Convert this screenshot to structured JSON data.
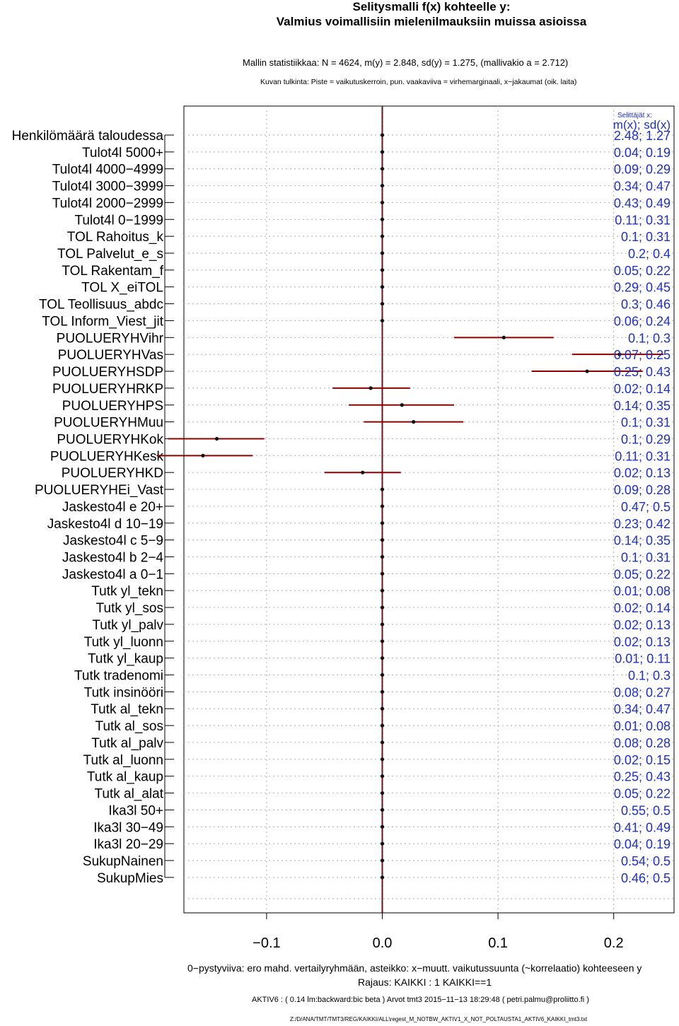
{
  "title_line1": "Selitysmalli f(x) kohteelle y:",
  "title_line2": "Valmius voimallisiin mielenilmauksiin muissa asioissa",
  "stats_line": "Mallin statistiikkaa: N = 4624, m(y) = 2.848, sd(y) = 1.275, (mallivakio a = 2.712)",
  "reading_line": "Kuvan tulkinta: Piste = vaikutuskerroin, pun. vaakaviiva = virhemarginaali, x−jakaumat (oik. laita)",
  "footer_line1": "0−pystyviiva: ero mahd. vertailyryhmään, asteikko: x−muutt. vaikutussuunta (~korrelaatio) kohteeseen y",
  "footer_line2": "Rajaus: KAIKKI : 1  KAIKKI==1",
  "footer_line3": "AKTIV6 : ( 0.14 lm:backward:bic beta )   Arvot tmt3 2015−11−13 18:29:48 ( petri.palmu@proliitto.fi )",
  "footer_line4": "Z:/D/ANA/TMT/TMT3/REG/KAIKKI/ALL\\regest_M_NOTBW_AKTIV1_X_NOT_POLTAUSTA1_AKTIV6_KAIKKI_tmt3.txt",
  "colors": {
    "dot": "#111111",
    "interval": "#8b0000",
    "zero_line": "#8b0000",
    "stats_text": "#1e2fd0",
    "grid": "#bbbbbb"
  },
  "chart_data": {
    "type": "scatter",
    "subtype": "coefficient-plot",
    "xlim": [
      -0.17,
      0.25
    ],
    "x_ticks": [
      -0.1,
      0.0,
      0.1,
      0.2
    ],
    "x_tick_labels": [
      "−0.1",
      "0.0",
      "0.1",
      "0.2"
    ],
    "reference_line_x": 0.0,
    "grid": true,
    "stats_header_small": "Selittäjät x:",
    "stats_header": "m(x); sd(x)",
    "rows": [
      {
        "label": "Henkilömäärä taloudessa",
        "coef": 0.0,
        "ci": null,
        "stats": "2.48; 1.27"
      },
      {
        "label": "Tulot4l 5000+",
        "coef": 0.0,
        "ci": null,
        "stats": "0.04; 0.19"
      },
      {
        "label": "Tulot4l 4000−4999",
        "coef": 0.0,
        "ci": null,
        "stats": "0.09; 0.29"
      },
      {
        "label": "Tulot4l 3000−3999",
        "coef": 0.0,
        "ci": null,
        "stats": "0.34; 0.47"
      },
      {
        "label": "Tulot4l 2000−2999",
        "coef": 0.0,
        "ci": null,
        "stats": "0.43; 0.49"
      },
      {
        "label": "Tulot4l 0−1999",
        "coef": 0.0,
        "ci": null,
        "stats": "0.11; 0.31"
      },
      {
        "label": "TOL Rahoitus_k",
        "coef": 0.0,
        "ci": null,
        "stats": "0.1; 0.31"
      },
      {
        "label": "TOL Palvelut_e_s",
        "coef": 0.0,
        "ci": null,
        "stats": "0.2; 0.4"
      },
      {
        "label": "TOL Rakentam_f",
        "coef": 0.0,
        "ci": null,
        "stats": "0.05; 0.22"
      },
      {
        "label": "TOL X_eiTOL",
        "coef": 0.0,
        "ci": null,
        "stats": "0.29; 0.45"
      },
      {
        "label": "TOL Teollisuus_abdc",
        "coef": 0.0,
        "ci": null,
        "stats": "0.3; 0.46"
      },
      {
        "label": "TOL Inform_Viest_jit",
        "coef": 0.0,
        "ci": null,
        "stats": "0.06; 0.24"
      },
      {
        "label": "PUOLUERYHVihr",
        "coef": 0.105,
        "ci": [
          0.062,
          0.148
        ],
        "stats": "0.1; 0.3"
      },
      {
        "label": "PUOLUERYHVas",
        "coef": 0.205,
        "ci": [
          0.164,
          0.243
        ],
        "stats": "0.07; 0.25"
      },
      {
        "label": "PUOLUERYHSDP",
        "coef": 0.177,
        "ci": [
          0.129,
          0.225
        ],
        "stats": "0.25; 0.43"
      },
      {
        "label": "PUOLUERYHRKP",
        "coef": -0.01,
        "ci": [
          -0.043,
          0.024
        ],
        "stats": "0.02; 0.14"
      },
      {
        "label": "PUOLUERYHPS",
        "coef": 0.017,
        "ci": [
          -0.029,
          0.062
        ],
        "stats": "0.14; 0.35"
      },
      {
        "label": "PUOLUERYHMuu",
        "coef": 0.027,
        "ci": [
          -0.016,
          0.07
        ],
        "stats": "0.1; 0.31"
      },
      {
        "label": "PUOLUERYHKok",
        "coef": -0.143,
        "ci": [
          -0.185,
          -0.102
        ],
        "stats": "0.1; 0.29"
      },
      {
        "label": "PUOLUERYHKesk",
        "coef": -0.155,
        "ci": [
          -0.195,
          -0.112
        ],
        "stats": "0.11; 0.31"
      },
      {
        "label": "PUOLUERYHKD",
        "coef": -0.017,
        "ci": [
          -0.05,
          0.016
        ],
        "stats": "0.02; 0.13"
      },
      {
        "label": "PUOLUERYHEi_Vast",
        "coef": 0.0,
        "ci": null,
        "stats": "0.09; 0.28"
      },
      {
        "label": "Jaskesto4l e 20+",
        "coef": 0.0,
        "ci": null,
        "stats": "0.47; 0.5"
      },
      {
        "label": "Jaskesto4l d 10−19",
        "coef": 0.0,
        "ci": null,
        "stats": "0.23; 0.42"
      },
      {
        "label": "Jaskesto4l c 5−9",
        "coef": 0.0,
        "ci": null,
        "stats": "0.14; 0.35"
      },
      {
        "label": "Jaskesto4l b 2−4",
        "coef": 0.0,
        "ci": null,
        "stats": "0.1; 0.31"
      },
      {
        "label": "Jaskesto4l a 0−1",
        "coef": 0.0,
        "ci": null,
        "stats": "0.05; 0.22"
      },
      {
        "label": "Tutk yl_tekn",
        "coef": 0.0,
        "ci": null,
        "stats": "0.01; 0.08"
      },
      {
        "label": "Tutk yl_sos",
        "coef": 0.0,
        "ci": null,
        "stats": "0.02; 0.14"
      },
      {
        "label": "Tutk yl_palv",
        "coef": 0.0,
        "ci": null,
        "stats": "0.02; 0.13"
      },
      {
        "label": "Tutk yl_luonn",
        "coef": 0.0,
        "ci": null,
        "stats": "0.02; 0.13"
      },
      {
        "label": "Tutk yl_kaup",
        "coef": 0.0,
        "ci": null,
        "stats": "0.01; 0.11"
      },
      {
        "label": "Tutk tradenomi",
        "coef": 0.0,
        "ci": null,
        "stats": "0.1; 0.3"
      },
      {
        "label": "Tutk insinööri",
        "coef": 0.0,
        "ci": null,
        "stats": "0.08; 0.27"
      },
      {
        "label": "Tutk al_tekn",
        "coef": 0.0,
        "ci": null,
        "stats": "0.34; 0.47"
      },
      {
        "label": "Tutk al_sos",
        "coef": 0.0,
        "ci": null,
        "stats": "0.01; 0.08"
      },
      {
        "label": "Tutk al_palv",
        "coef": 0.0,
        "ci": null,
        "stats": "0.08; 0.28"
      },
      {
        "label": "Tutk al_luonn",
        "coef": 0.0,
        "ci": null,
        "stats": "0.02; 0.15"
      },
      {
        "label": "Tutk al_kaup",
        "coef": 0.0,
        "ci": null,
        "stats": "0.25; 0.43"
      },
      {
        "label": "Tutk al_alat",
        "coef": 0.0,
        "ci": null,
        "stats": "0.05; 0.22"
      },
      {
        "label": "Ika3l 50+",
        "coef": 0.0,
        "ci": null,
        "stats": "0.55; 0.5"
      },
      {
        "label": "Ika3l 30−49",
        "coef": 0.0,
        "ci": null,
        "stats": "0.41; 0.49"
      },
      {
        "label": "Ika3l 20−29",
        "coef": 0.0,
        "ci": null,
        "stats": "0.04; 0.19"
      },
      {
        "label": "SukupNainen",
        "coef": 0.0,
        "ci": null,
        "stats": "0.54; 0.5"
      },
      {
        "label": "SukupMies",
        "coef": 0.0,
        "ci": null,
        "stats": "0.46; 0.5"
      }
    ]
  }
}
